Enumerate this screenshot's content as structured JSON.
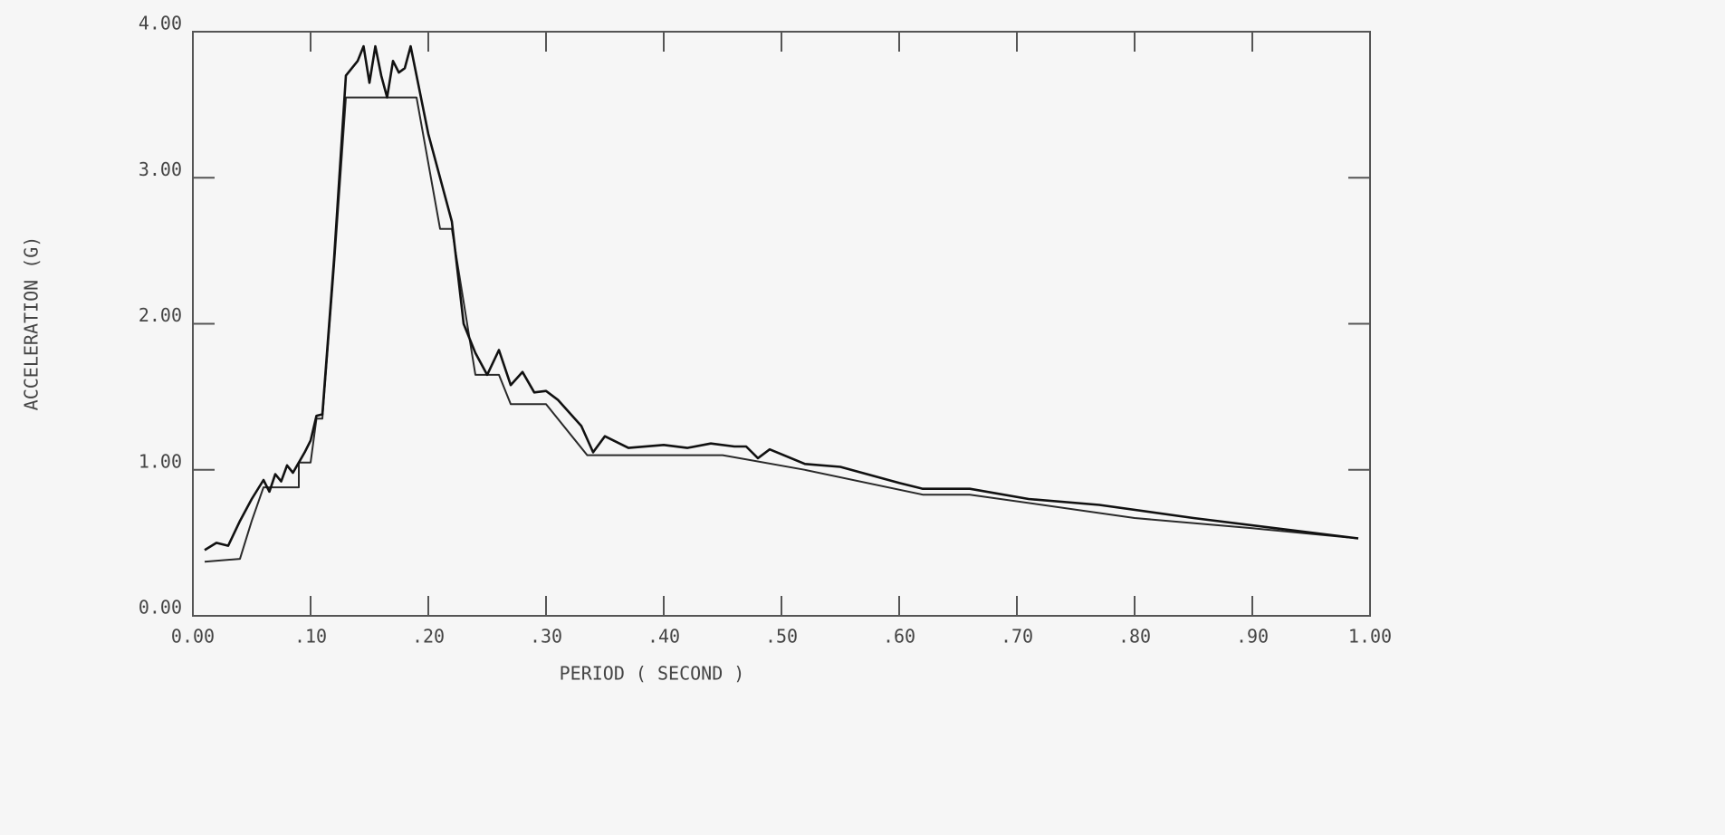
{
  "chart_data": {
    "type": "line",
    "xlabel": "PERIOD ( SECOND )",
    "ylabel": "ACCELERATION (G)",
    "xlim": [
      0,
      1
    ],
    "ylim": [
      0,
      4
    ],
    "xticks": [
      {
        "value": 0,
        "label": "0.00"
      },
      {
        "value": 0.1,
        "label": ".10"
      },
      {
        "value": 0.2,
        "label": ".20"
      },
      {
        "value": 0.3,
        "label": ".30"
      },
      {
        "value": 0.4,
        "label": ".40"
      },
      {
        "value": 0.5,
        "label": ".50"
      },
      {
        "value": 0.6,
        "label": ".60"
      },
      {
        "value": 0.7,
        "label": ".70"
      },
      {
        "value": 0.8,
        "label": ".80"
      },
      {
        "value": 0.9,
        "label": ".90"
      },
      {
        "value": 1,
        "label": "1.00"
      }
    ],
    "yticks": [
      {
        "value": 0,
        "label": "0.00"
      },
      {
        "value": 1,
        "label": "1.00"
      },
      {
        "value": 2,
        "label": "2.00"
      },
      {
        "value": 3,
        "label": "3.00"
      },
      {
        "value": 4,
        "label": "4.00"
      }
    ],
    "series": [
      {
        "color": "#2a2a2a",
        "x": [
          0.01,
          0.04,
          0.05,
          0.06,
          0.09,
          0.09,
          0.1,
          0.105,
          0.11,
          0.12,
          0.13,
          0.19,
          0.21,
          0.22,
          0.24,
          0.26,
          0.27,
          0.3,
          0.335,
          0.45,
          0.52,
          0.62,
          0.66,
          0.8,
          0.9,
          0.99
        ],
        "values": [
          0.37,
          0.39,
          0.65,
          0.88,
          0.88,
          1.05,
          1.05,
          1.35,
          1.35,
          2.4,
          3.55,
          3.55,
          2.65,
          2.65,
          1.65,
          1.65,
          1.45,
          1.45,
          1.1,
          1.1,
          1.0,
          0.83,
          0.83,
          0.67,
          0.6,
          0.53
        ]
      },
      {
        "color": "#111111",
        "x": [
          0.01,
          0.02,
          0.03,
          0.04,
          0.05,
          0.06,
          0.065,
          0.07,
          0.075,
          0.08,
          0.085,
          0.09,
          0.095,
          0.1,
          0.105,
          0.11,
          0.12,
          0.13,
          0.14,
          0.145,
          0.15,
          0.155,
          0.16,
          0.165,
          0.17,
          0.175,
          0.18,
          0.185,
          0.19,
          0.2,
          0.21,
          0.22,
          0.23,
          0.24,
          0.25,
          0.26,
          0.27,
          0.28,
          0.29,
          0.3,
          0.31,
          0.33,
          0.34,
          0.35,
          0.37,
          0.4,
          0.42,
          0.44,
          0.46,
          0.47,
          0.48,
          0.49,
          0.52,
          0.55,
          0.6,
          0.62,
          0.66,
          0.71,
          0.77,
          0.85,
          0.92,
          0.99
        ],
        "values": [
          0.45,
          0.5,
          0.48,
          0.65,
          0.8,
          0.93,
          0.85,
          0.97,
          0.92,
          1.03,
          0.98,
          1.05,
          1.12,
          1.2,
          1.37,
          1.38,
          2.45,
          3.7,
          3.8,
          3.9,
          3.65,
          3.9,
          3.7,
          3.55,
          3.8,
          3.72,
          3.75,
          3.9,
          3.7,
          3.3,
          3.0,
          2.7,
          2.0,
          1.8,
          1.65,
          1.82,
          1.58,
          1.67,
          1.53,
          1.54,
          1.48,
          1.3,
          1.12,
          1.23,
          1.15,
          1.17,
          1.15,
          1.18,
          1.16,
          1.16,
          1.08,
          1.14,
          1.04,
          1.02,
          0.91,
          0.87,
          0.87,
          0.8,
          0.76,
          0.67,
          0.6,
          0.53
        ]
      }
    ]
  }
}
